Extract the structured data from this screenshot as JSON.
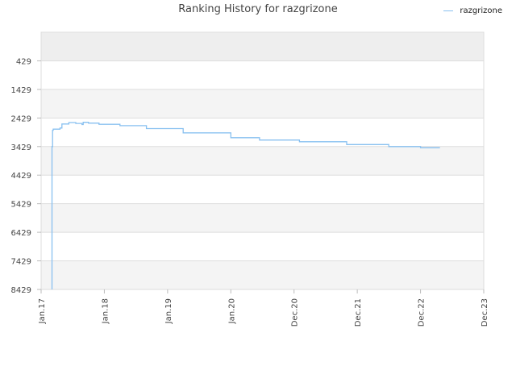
{
  "chart_data": {
    "type": "line",
    "title": "Ranking History for razgrizone",
    "xlabel": "",
    "ylabel": "",
    "y_reversed": true,
    "ylim": [
      8429,
      -571
    ],
    "y_ticks": [
      429,
      1429,
      2429,
      3429,
      4429,
      5429,
      6429,
      7429,
      8429
    ],
    "x_tick_labels": [
      "Jan.17",
      "Jan.18",
      "Jan.19",
      "Jan.20",
      "Dec.20",
      "Dec.21",
      "Dec.22",
      "Dec.23"
    ],
    "x_tick_dates": [
      "2017-01-01",
      "2018-01-01",
      "2019-01-01",
      "2020-01-01",
      "2020-12-01",
      "2021-12-01",
      "2022-12-01",
      "2023-12-01"
    ],
    "grid": true,
    "band_colors": [
      "#eeeeee",
      "#f4f4f4"
    ],
    "series": [
      {
        "name": "razgrizone",
        "color": "#88c0f0",
        "points": [
          [
            "2017-03-05",
            8429
          ],
          [
            "2017-03-05",
            3429
          ],
          [
            "2017-03-08",
            2860
          ],
          [
            "2017-03-12",
            2820
          ],
          [
            "2017-04-20",
            2780
          ],
          [
            "2017-05-01",
            2640
          ],
          [
            "2017-06-10",
            2590
          ],
          [
            "2017-07-20",
            2620
          ],
          [
            "2017-08-25",
            2660
          ],
          [
            "2017-09-01",
            2580
          ],
          [
            "2017-10-01",
            2610
          ],
          [
            "2017-12-01",
            2650
          ],
          [
            "2018-04-01",
            2700
          ],
          [
            "2018-09-01",
            2800
          ],
          [
            "2019-04-01",
            2950
          ],
          [
            "2020-01-01",
            3120
          ],
          [
            "2020-06-01",
            3200
          ],
          [
            "2021-01-01",
            3260
          ],
          [
            "2021-10-01",
            3360
          ],
          [
            "2022-06-01",
            3430
          ],
          [
            "2022-12-01",
            3470
          ],
          [
            "2023-03-20",
            3490
          ]
        ]
      }
    ]
  }
}
